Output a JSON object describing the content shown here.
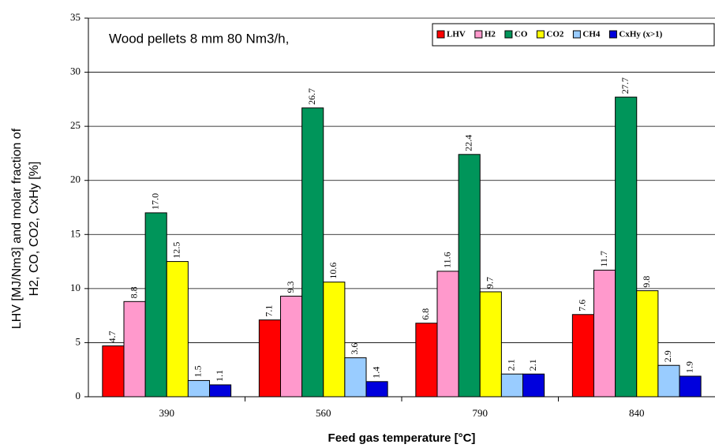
{
  "chart_data": {
    "type": "bar",
    "annotation": "Wood pellets 8 mm 80 Nm3/h,",
    "y_label": [
      "LHV [MJ/Nm3] and molar fraction of",
      "H2, CO, CO2, CxHy [%]"
    ],
    "x_label": "Feed gas temperature [°C]",
    "categories": [
      "390",
      "560",
      "790",
      "840"
    ],
    "series": [
      {
        "name": "LHV",
        "color": "#ff0000",
        "values": [
          4.7,
          7.1,
          6.8,
          7.6
        ],
        "value_labels": [
          "4.7",
          "7.1",
          "6.8",
          "7.6"
        ]
      },
      {
        "name": "H2",
        "color": "#ff99cc",
        "values": [
          8.8,
          9.3,
          11.6,
          11.7
        ],
        "value_labels": [
          "8.8",
          "9.3",
          "11.6",
          "11.7"
        ]
      },
      {
        "name": "CO",
        "color": "#00955a",
        "values": [
          17.0,
          26.7,
          22.4,
          27.7
        ],
        "value_labels": [
          "17.0",
          "26.7",
          "22.4",
          "27.7"
        ]
      },
      {
        "name": "CO2",
        "color": "#ffff00",
        "values": [
          12.5,
          10.6,
          9.7,
          9.8
        ],
        "value_labels": [
          "12.5",
          "10.6",
          "9.7",
          "9.8"
        ]
      },
      {
        "name": "CH4",
        "color": "#99ccff",
        "values": [
          1.5,
          3.6,
          2.1,
          2.9
        ],
        "value_labels": [
          "1.5",
          "3.6",
          "2.1",
          "2.9"
        ]
      },
      {
        "name": "CxHy (x>1)",
        "color": "#0000dd",
        "values": [
          1.1,
          1.4,
          2.1,
          1.9
        ],
        "value_labels": [
          "1.1",
          "1.4",
          "2.1",
          "1.9"
        ]
      }
    ],
    "ylim": [
      0,
      35
    ],
    "yticks": [
      0,
      5,
      10,
      15,
      20,
      25,
      30,
      35
    ],
    "grid": true,
    "legend": "top-right"
  }
}
